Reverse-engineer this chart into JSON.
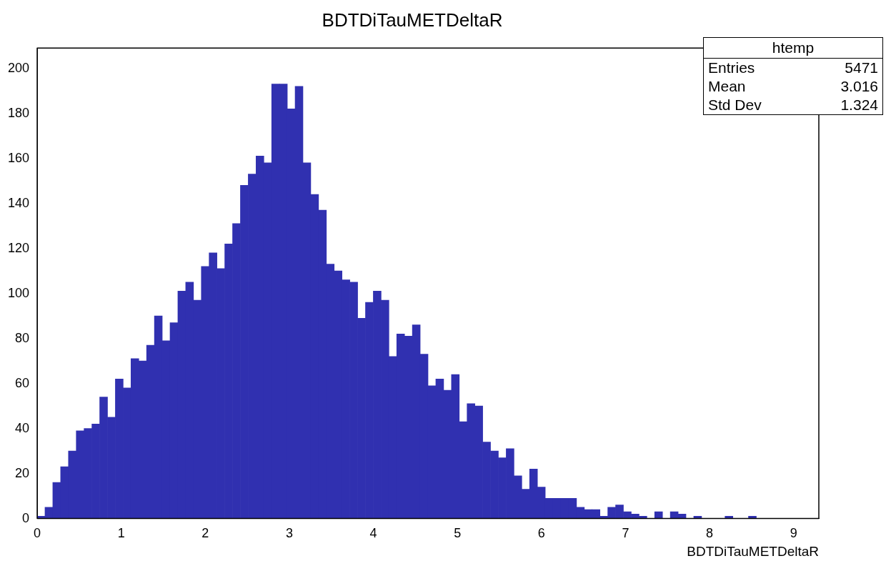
{
  "chart_data": {
    "type": "histogram",
    "title": "BDTDiTauMETDeltaR",
    "xlabel": "BDTDiTauMETDeltaR",
    "bins": [
      0,
      0.093,
      0.186,
      0.279,
      0.372,
      0.465,
      0.558,
      0.651,
      0.744,
      0.837,
      0.93,
      1.023,
      1.116,
      1.209,
      1.302,
      1.395,
      1.488,
      1.581,
      1.674,
      1.767,
      1.86,
      1.953,
      2.046,
      2.139,
      2.232,
      2.325,
      2.418,
      2.511,
      2.604,
      2.697,
      2.79,
      2.883,
      2.976,
      3.069,
      3.162,
      3.255,
      3.348,
      3.441,
      3.534,
      3.627,
      3.72,
      3.813,
      3.906,
      3.999,
      4.092,
      4.185,
      4.278,
      4.371,
      4.464,
      4.557,
      4.65,
      4.743,
      4.836,
      4.929,
      5.022,
      5.115,
      5.208,
      5.301,
      5.394,
      5.487,
      5.58,
      5.673,
      5.766,
      5.859,
      5.952,
      6.045,
      6.138,
      6.231,
      6.324,
      6.417,
      6.51,
      6.603,
      6.696,
      6.789,
      6.882,
      6.975,
      7.068,
      7.161,
      7.254,
      7.347,
      7.44,
      7.533,
      7.626,
      7.719,
      7.812,
      7.905,
      7.998,
      8.091,
      8.184,
      8.277,
      8.37,
      8.463,
      8.556,
      8.649,
      8.742,
      8.835,
      8.928,
      9.021,
      9.114,
      9.207,
      9.3
    ],
    "values": [
      1,
      5,
      16,
      23,
      30,
      39,
      40,
      42,
      54,
      45,
      62,
      58,
      71,
      70,
      77,
      90,
      79,
      87,
      101,
      105,
      97,
      112,
      118,
      111,
      122,
      131,
      148,
      153,
      161,
      158,
      193,
      193,
      182,
      192,
      158,
      144,
      137,
      113,
      110,
      106,
      105,
      89,
      96,
      101,
      97,
      72,
      82,
      81,
      86,
      73,
      59,
      62,
      57,
      64,
      43,
      51,
      50,
      34,
      30,
      27,
      31,
      19,
      13,
      22,
      14,
      9,
      9,
      9,
      9,
      5,
      4,
      4,
      1,
      5,
      6,
      3,
      2,
      1,
      0,
      3,
      0,
      3,
      2,
      0,
      1,
      0,
      0,
      0,
      1,
      0,
      0,
      1,
      0,
      0,
      0,
      0,
      0,
      0,
      0,
      0
    ],
    "color": "#3030b0",
    "xlim": [
      0,
      9.3
    ],
    "xticks": [
      0,
      1,
      2,
      3,
      4,
      5,
      6,
      7,
      8,
      9
    ],
    "ylim": [
      0,
      209
    ],
    "yticks": [
      0,
      20,
      40,
      60,
      80,
      100,
      120,
      140,
      160,
      180,
      200
    ],
    "grid": false,
    "annotations": [
      "htemp",
      "Entries",
      "5471",
      "Mean",
      "3.016",
      "Std Dev",
      "1.324"
    ]
  }
}
